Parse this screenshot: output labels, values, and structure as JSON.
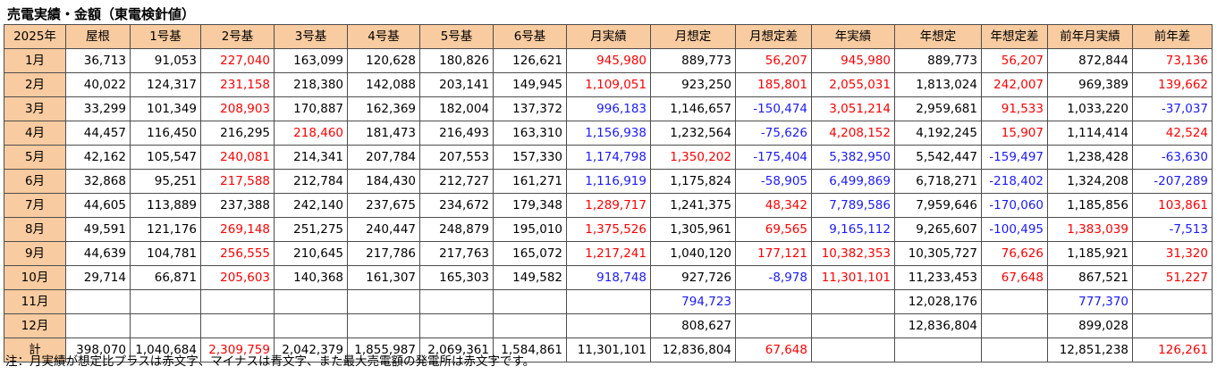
{
  "title": "売電実績・金額（東電検針値）",
  "headers": [
    "2025年",
    "屋根",
    "1号基",
    "2号基",
    "3号基",
    "4号基",
    "5号基",
    "6号基",
    "月実績",
    "月想定",
    "月想定差",
    "年実績",
    "年想定",
    "年想定差",
    "前年月実績",
    "前年差"
  ],
  "rows": [
    {
      "label": "1月",
      "cells": [
        [
          "36,713",
          ""
        ],
        [
          "91,053",
          ""
        ],
        [
          "227,040",
          "red"
        ],
        [
          "163,099",
          ""
        ],
        [
          "120,628",
          ""
        ],
        [
          "180,826",
          ""
        ],
        [
          "126,621",
          ""
        ],
        [
          "945,980",
          "red"
        ],
        [
          "889,773",
          ""
        ],
        [
          "56,207",
          "red"
        ],
        [
          "945,980",
          "red"
        ],
        [
          "889,773",
          ""
        ],
        [
          "56,207",
          "red"
        ],
        [
          "872,844",
          ""
        ],
        [
          "73,136",
          "red"
        ]
      ]
    },
    {
      "label": "2月",
      "cells": [
        [
          "40,022",
          ""
        ],
        [
          "124,317",
          ""
        ],
        [
          "231,158",
          "red"
        ],
        [
          "218,380",
          ""
        ],
        [
          "142,088",
          ""
        ],
        [
          "203,141",
          ""
        ],
        [
          "149,945",
          ""
        ],
        [
          "1,109,051",
          "red"
        ],
        [
          "923,250",
          ""
        ],
        [
          "185,801",
          "red"
        ],
        [
          "2,055,031",
          "red"
        ],
        [
          "1,813,024",
          ""
        ],
        [
          "242,007",
          "red"
        ],
        [
          "969,389",
          ""
        ],
        [
          "139,662",
          "red"
        ]
      ]
    },
    {
      "label": "3月",
      "cells": [
        [
          "33,299",
          ""
        ],
        [
          "101,349",
          ""
        ],
        [
          "208,903",
          "red"
        ],
        [
          "170,887",
          ""
        ],
        [
          "162,369",
          ""
        ],
        [
          "182,004",
          ""
        ],
        [
          "137,372",
          ""
        ],
        [
          "996,183",
          "blue"
        ],
        [
          "1,146,657",
          ""
        ],
        [
          "-150,474",
          "blue"
        ],
        [
          "3,051,214",
          "red"
        ],
        [
          "2,959,681",
          ""
        ],
        [
          "91,533",
          "red"
        ],
        [
          "1,033,220",
          ""
        ],
        [
          "-37,037",
          "blue"
        ]
      ]
    },
    {
      "label": "4月",
      "cells": [
        [
          "44,457",
          ""
        ],
        [
          "116,450",
          ""
        ],
        [
          "216,295",
          ""
        ],
        [
          "218,460",
          "red"
        ],
        [
          "181,473",
          ""
        ],
        [
          "216,493",
          ""
        ],
        [
          "163,310",
          ""
        ],
        [
          "1,156,938",
          "blue"
        ],
        [
          "1,232,564",
          ""
        ],
        [
          "-75,626",
          "blue"
        ],
        [
          "4,208,152",
          "red"
        ],
        [
          "4,192,245",
          ""
        ],
        [
          "15,907",
          "red"
        ],
        [
          "1,114,414",
          ""
        ],
        [
          "42,524",
          "red"
        ]
      ]
    },
    {
      "label": "5月",
      "cells": [
        [
          "42,162",
          ""
        ],
        [
          "105,547",
          ""
        ],
        [
          "240,081",
          "red"
        ],
        [
          "214,341",
          ""
        ],
        [
          "207,784",
          ""
        ],
        [
          "207,553",
          ""
        ],
        [
          "157,330",
          ""
        ],
        [
          "1,174,798",
          "blue"
        ],
        [
          "1,350,202",
          "red"
        ],
        [
          "-175,404",
          "blue"
        ],
        [
          "5,382,950",
          "blue"
        ],
        [
          "5,542,447",
          ""
        ],
        [
          "-159,497",
          "blue"
        ],
        [
          "1,238,428",
          ""
        ],
        [
          "-63,630",
          "blue"
        ]
      ]
    },
    {
      "label": "6月",
      "cells": [
        [
          "32,868",
          ""
        ],
        [
          "95,251",
          ""
        ],
        [
          "217,588",
          "red"
        ],
        [
          "212,784",
          ""
        ],
        [
          "184,430",
          ""
        ],
        [
          "212,727",
          ""
        ],
        [
          "161,271",
          ""
        ],
        [
          "1,116,919",
          "blue"
        ],
        [
          "1,175,824",
          ""
        ],
        [
          "-58,905",
          "blue"
        ],
        [
          "6,499,869",
          "blue"
        ],
        [
          "6,718,271",
          ""
        ],
        [
          "-218,402",
          "blue"
        ],
        [
          "1,324,208",
          ""
        ],
        [
          "-207,289",
          "blue"
        ]
      ]
    },
    {
      "label": "7月",
      "cells": [
        [
          "44,605",
          ""
        ],
        [
          "113,889",
          ""
        ],
        [
          "237,388",
          ""
        ],
        [
          "242,140",
          ""
        ],
        [
          "237,675",
          ""
        ],
        [
          "234,672",
          ""
        ],
        [
          "179,348",
          ""
        ],
        [
          "1,289,717",
          "red"
        ],
        [
          "1,241,375",
          ""
        ],
        [
          "48,342",
          "red"
        ],
        [
          "7,789,586",
          "blue"
        ],
        [
          "7,959,646",
          ""
        ],
        [
          "-170,060",
          "blue"
        ],
        [
          "1,185,856",
          ""
        ],
        [
          "103,861",
          "red"
        ]
      ]
    },
    {
      "label": "8月",
      "cells": [
        [
          "49,591",
          ""
        ],
        [
          "121,176",
          ""
        ],
        [
          "269,148",
          "red"
        ],
        [
          "251,275",
          ""
        ],
        [
          "240,447",
          ""
        ],
        [
          "248,879",
          ""
        ],
        [
          "195,010",
          ""
        ],
        [
          "1,375,526",
          "red"
        ],
        [
          "1,305,961",
          ""
        ],
        [
          "69,565",
          "red"
        ],
        [
          "9,165,112",
          "blue"
        ],
        [
          "9,265,607",
          ""
        ],
        [
          "-100,495",
          "blue"
        ],
        [
          "1,383,039",
          "red"
        ],
        [
          "-7,513",
          "blue"
        ]
      ]
    },
    {
      "label": "9月",
      "cells": [
        [
          "44,639",
          ""
        ],
        [
          "104,781",
          ""
        ],
        [
          "256,555",
          "red"
        ],
        [
          "210,645",
          ""
        ],
        [
          "217,786",
          ""
        ],
        [
          "217,763",
          ""
        ],
        [
          "165,072",
          ""
        ],
        [
          "1,217,241",
          "red"
        ],
        [
          "1,040,120",
          ""
        ],
        [
          "177,121",
          "red"
        ],
        [
          "10,382,353",
          "red"
        ],
        [
          "10,305,727",
          ""
        ],
        [
          "76,626",
          "red"
        ],
        [
          "1,185,921",
          ""
        ],
        [
          "31,320",
          "red"
        ]
      ]
    },
    {
      "label": "10月",
      "cells": [
        [
          "29,714",
          ""
        ],
        [
          "66,871",
          ""
        ],
        [
          "205,603",
          "red"
        ],
        [
          "140,368",
          ""
        ],
        [
          "161,307",
          ""
        ],
        [
          "165,303",
          ""
        ],
        [
          "149,582",
          ""
        ],
        [
          "918,748",
          "blue"
        ],
        [
          "927,726",
          ""
        ],
        [
          "-8,978",
          "blue"
        ],
        [
          "11,301,101",
          "red"
        ],
        [
          "11,233,453",
          ""
        ],
        [
          "67,648",
          "red"
        ],
        [
          "867,521",
          ""
        ],
        [
          "51,227",
          "red"
        ]
      ]
    },
    {
      "label": "11月",
      "cells": [
        [
          "",
          ""
        ],
        [
          "",
          ""
        ],
        [
          "",
          ""
        ],
        [
          "",
          ""
        ],
        [
          "",
          ""
        ],
        [
          "",
          ""
        ],
        [
          "",
          ""
        ],
        [
          "",
          ""
        ],
        [
          "794,723",
          "blue"
        ],
        [
          "",
          ""
        ],
        [
          "",
          ""
        ],
        [
          "12,028,176",
          ""
        ],
        [
          "",
          ""
        ],
        [
          "777,370",
          "blue"
        ],
        [
          "",
          ""
        ]
      ]
    },
    {
      "label": "12月",
      "cells": [
        [
          "",
          ""
        ],
        [
          "",
          ""
        ],
        [
          "",
          ""
        ],
        [
          "",
          ""
        ],
        [
          "",
          ""
        ],
        [
          "",
          ""
        ],
        [
          "",
          ""
        ],
        [
          "",
          ""
        ],
        [
          "808,627",
          ""
        ],
        [
          "",
          ""
        ],
        [
          "",
          ""
        ],
        [
          "12,836,804",
          ""
        ],
        [
          "",
          ""
        ],
        [
          "899,028",
          ""
        ],
        [
          "",
          ""
        ]
      ]
    },
    {
      "label": "計",
      "cells": [
        [
          "398,070",
          ""
        ],
        [
          "1,040,684",
          ""
        ],
        [
          "2,309,759",
          "red"
        ],
        [
          "2,042,379",
          ""
        ],
        [
          "1,855,987",
          ""
        ],
        [
          "2,069,361",
          ""
        ],
        [
          "1,584,861",
          ""
        ],
        [
          "11,301,101",
          ""
        ],
        [
          "12,836,804",
          ""
        ],
        [
          "67,648",
          "red"
        ],
        [
          "",
          ""
        ],
        [
          "",
          ""
        ],
        [
          "",
          ""
        ],
        [
          "12,851,238",
          ""
        ],
        [
          "126,261",
          "red"
        ]
      ]
    }
  ],
  "note": "注：月実績が想定比プラスは赤文字、マイナスは青文字、また最大売電額の発電所は赤文字です。",
  "colors": {
    "header_bg": "#f8cba0",
    "positive": "#ff0000",
    "negative": "#1a1aff",
    "grid": "#4d4d4d"
  }
}
